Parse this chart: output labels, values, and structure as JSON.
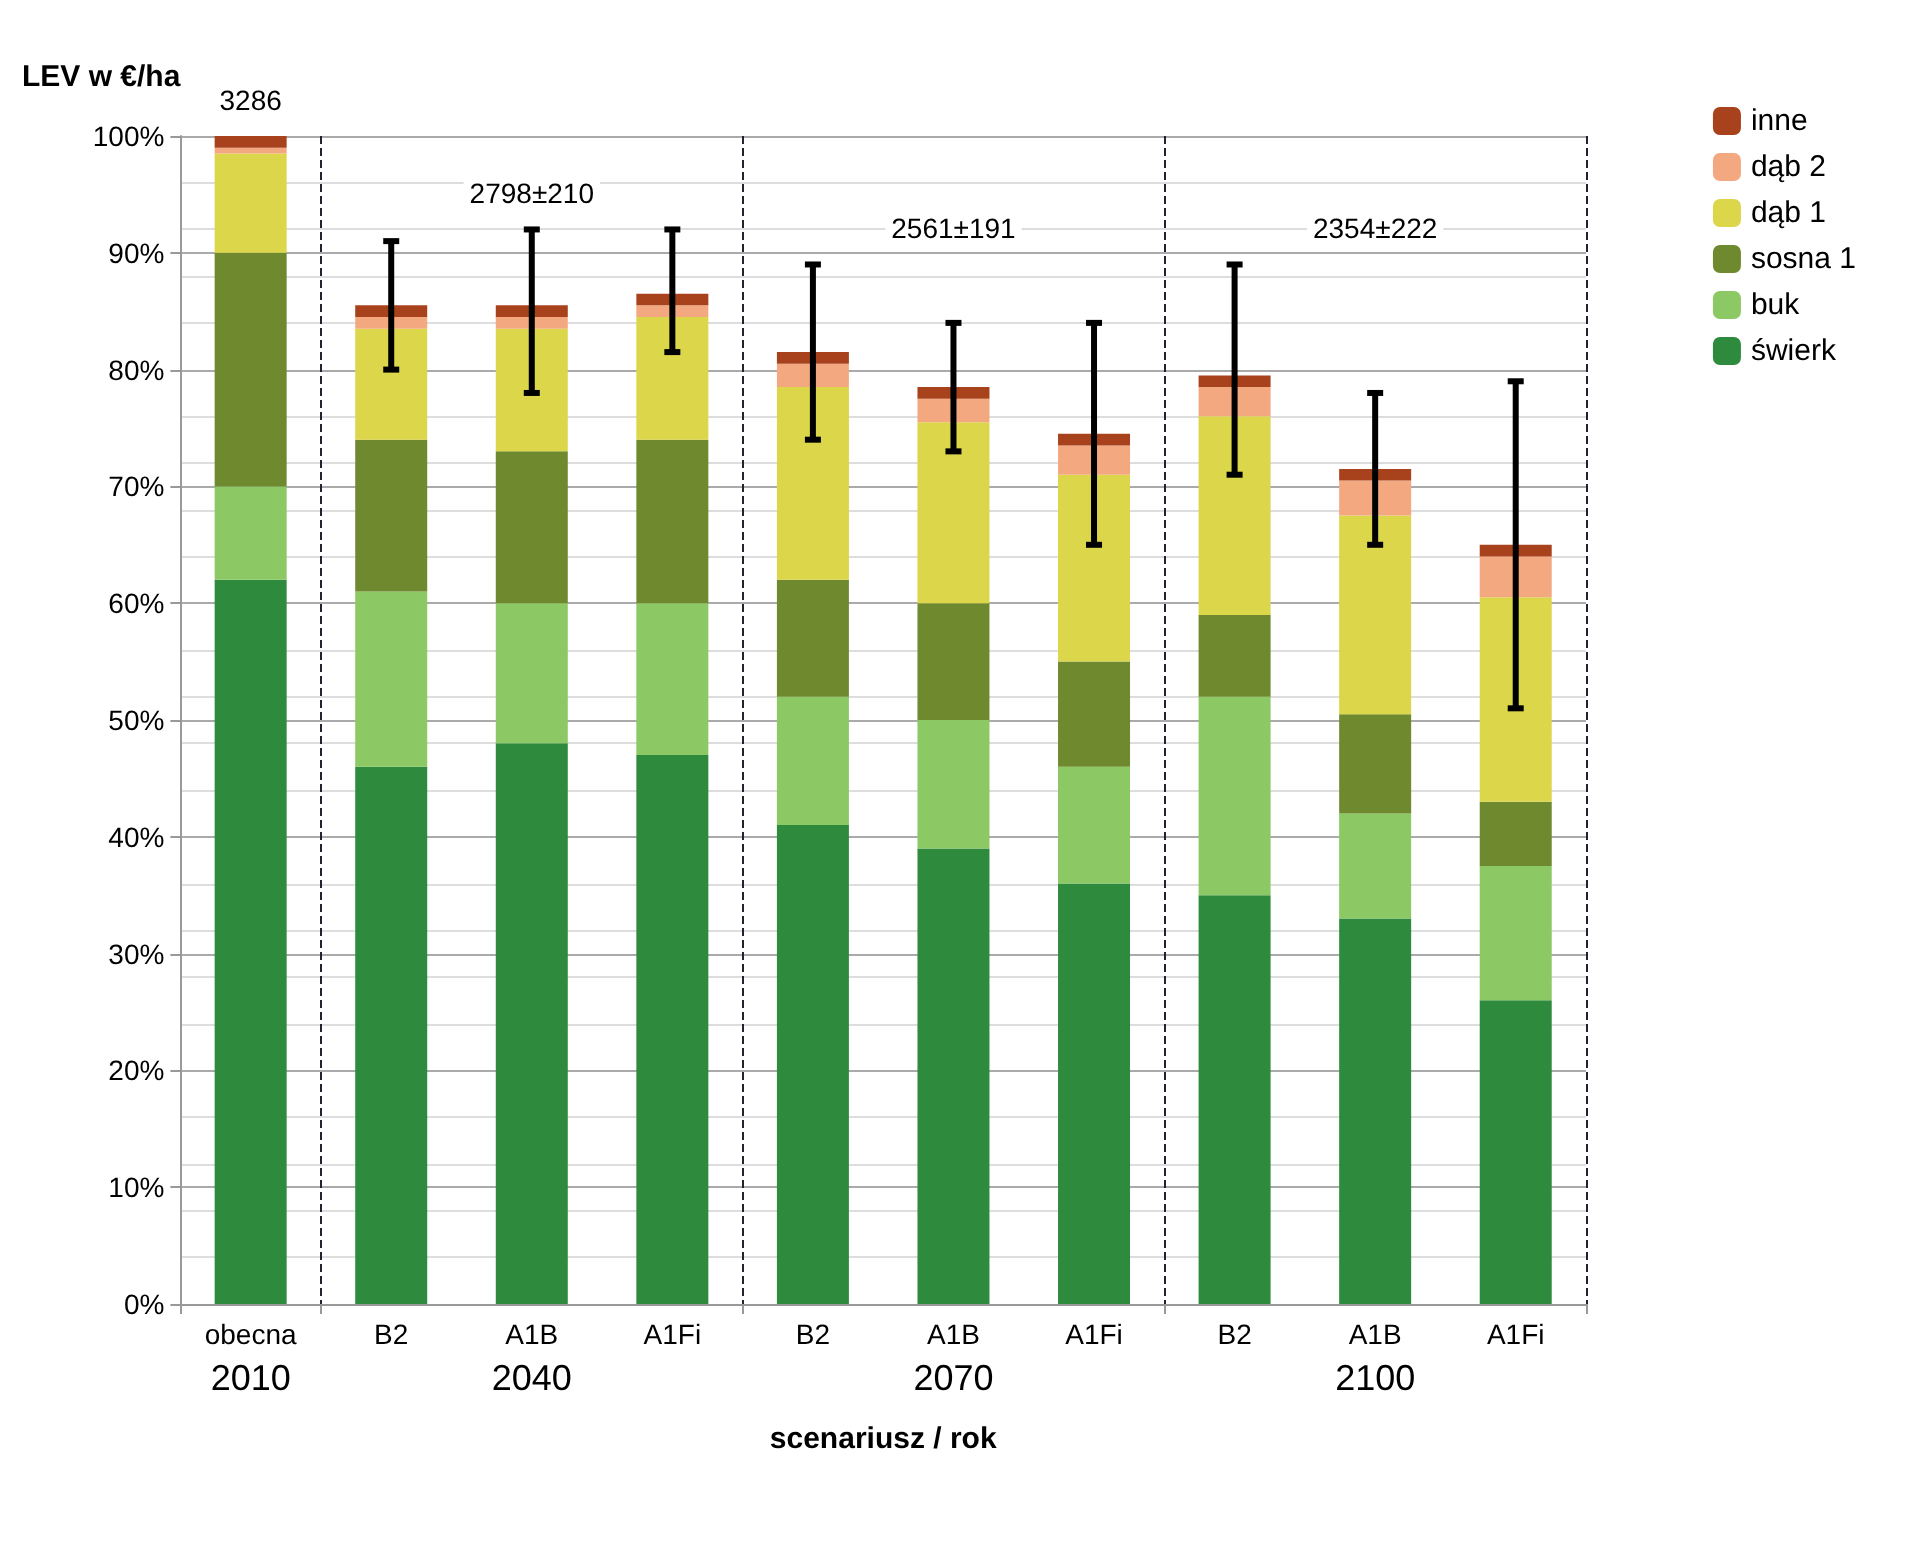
{
  "chart_data": {
    "type": "bar",
    "stacked": true,
    "ylabel": "LEV w €/ha",
    "xlabel": "scenariusz / rok",
    "categories": [
      "obecna",
      "B2",
      "A1B",
      "A1Fi",
      "B2",
      "A1B",
      "A1Fi",
      "B2",
      "A1B",
      "A1Fi"
    ],
    "series": [
      {
        "name": "świerk",
        "color": "#2e8b3e",
        "values": [
          62,
          46,
          48,
          47,
          41,
          39,
          36,
          35,
          33,
          26
        ]
      },
      {
        "name": "buk",
        "color": "#8cc863",
        "values": [
          8,
          15,
          12,
          13,
          11,
          11,
          10,
          17,
          9,
          11.5
        ]
      },
      {
        "name": "sosna 1",
        "color": "#6f8a2e",
        "values": [
          20,
          13,
          13,
          14,
          10,
          10,
          9,
          7,
          8.5,
          5.5
        ]
      },
      {
        "name": "dąb 1",
        "color": "#dcd64a",
        "values": [
          8.5,
          9.5,
          10.5,
          10.5,
          16.5,
          15.5,
          16,
          17,
          17,
          17.5
        ]
      },
      {
        "name": "dąb 2",
        "color": "#f4a880",
        "values": [
          0.5,
          1,
          1,
          1,
          2,
          2,
          2.5,
          2.5,
          3,
          3.5
        ]
      },
      {
        "name": "inne",
        "color": "#a8421c",
        "values": [
          1,
          1,
          1,
          1,
          1,
          1,
          1,
          1,
          1,
          1
        ],
        "errors": [
          null,
          5.5,
          [
            78,
            92
          ],
          [
            81.5,
            92
          ],
          7.5,
          5.5,
          9.5,
          [
            71,
            89
          ],
          6.5,
          14
        ]
      }
    ],
    "ylim": [
      0,
      100
    ],
    "yticks": [
      {
        "value": 0,
        "label": "0%"
      },
      {
        "value": 10,
        "label": "10%"
      },
      {
        "value": 20,
        "label": "20%"
      },
      {
        "value": 30,
        "label": "30%"
      },
      {
        "value": 40,
        "label": "40%"
      },
      {
        "value": 50,
        "label": "50%"
      },
      {
        "value": 60,
        "label": "60%"
      },
      {
        "value": 70,
        "label": "70%"
      },
      {
        "value": 80,
        "label": "80%"
      },
      {
        "value": 90,
        "label": "90%"
      },
      {
        "value": 100,
        "label": "100%"
      }
    ],
    "grid": "y",
    "legend": "right",
    "annotations": [
      "3286",
      "2798±210",
      "2561±191",
      "2354±222",
      "2010",
      "2040",
      "2070",
      "2100"
    ]
  }
}
